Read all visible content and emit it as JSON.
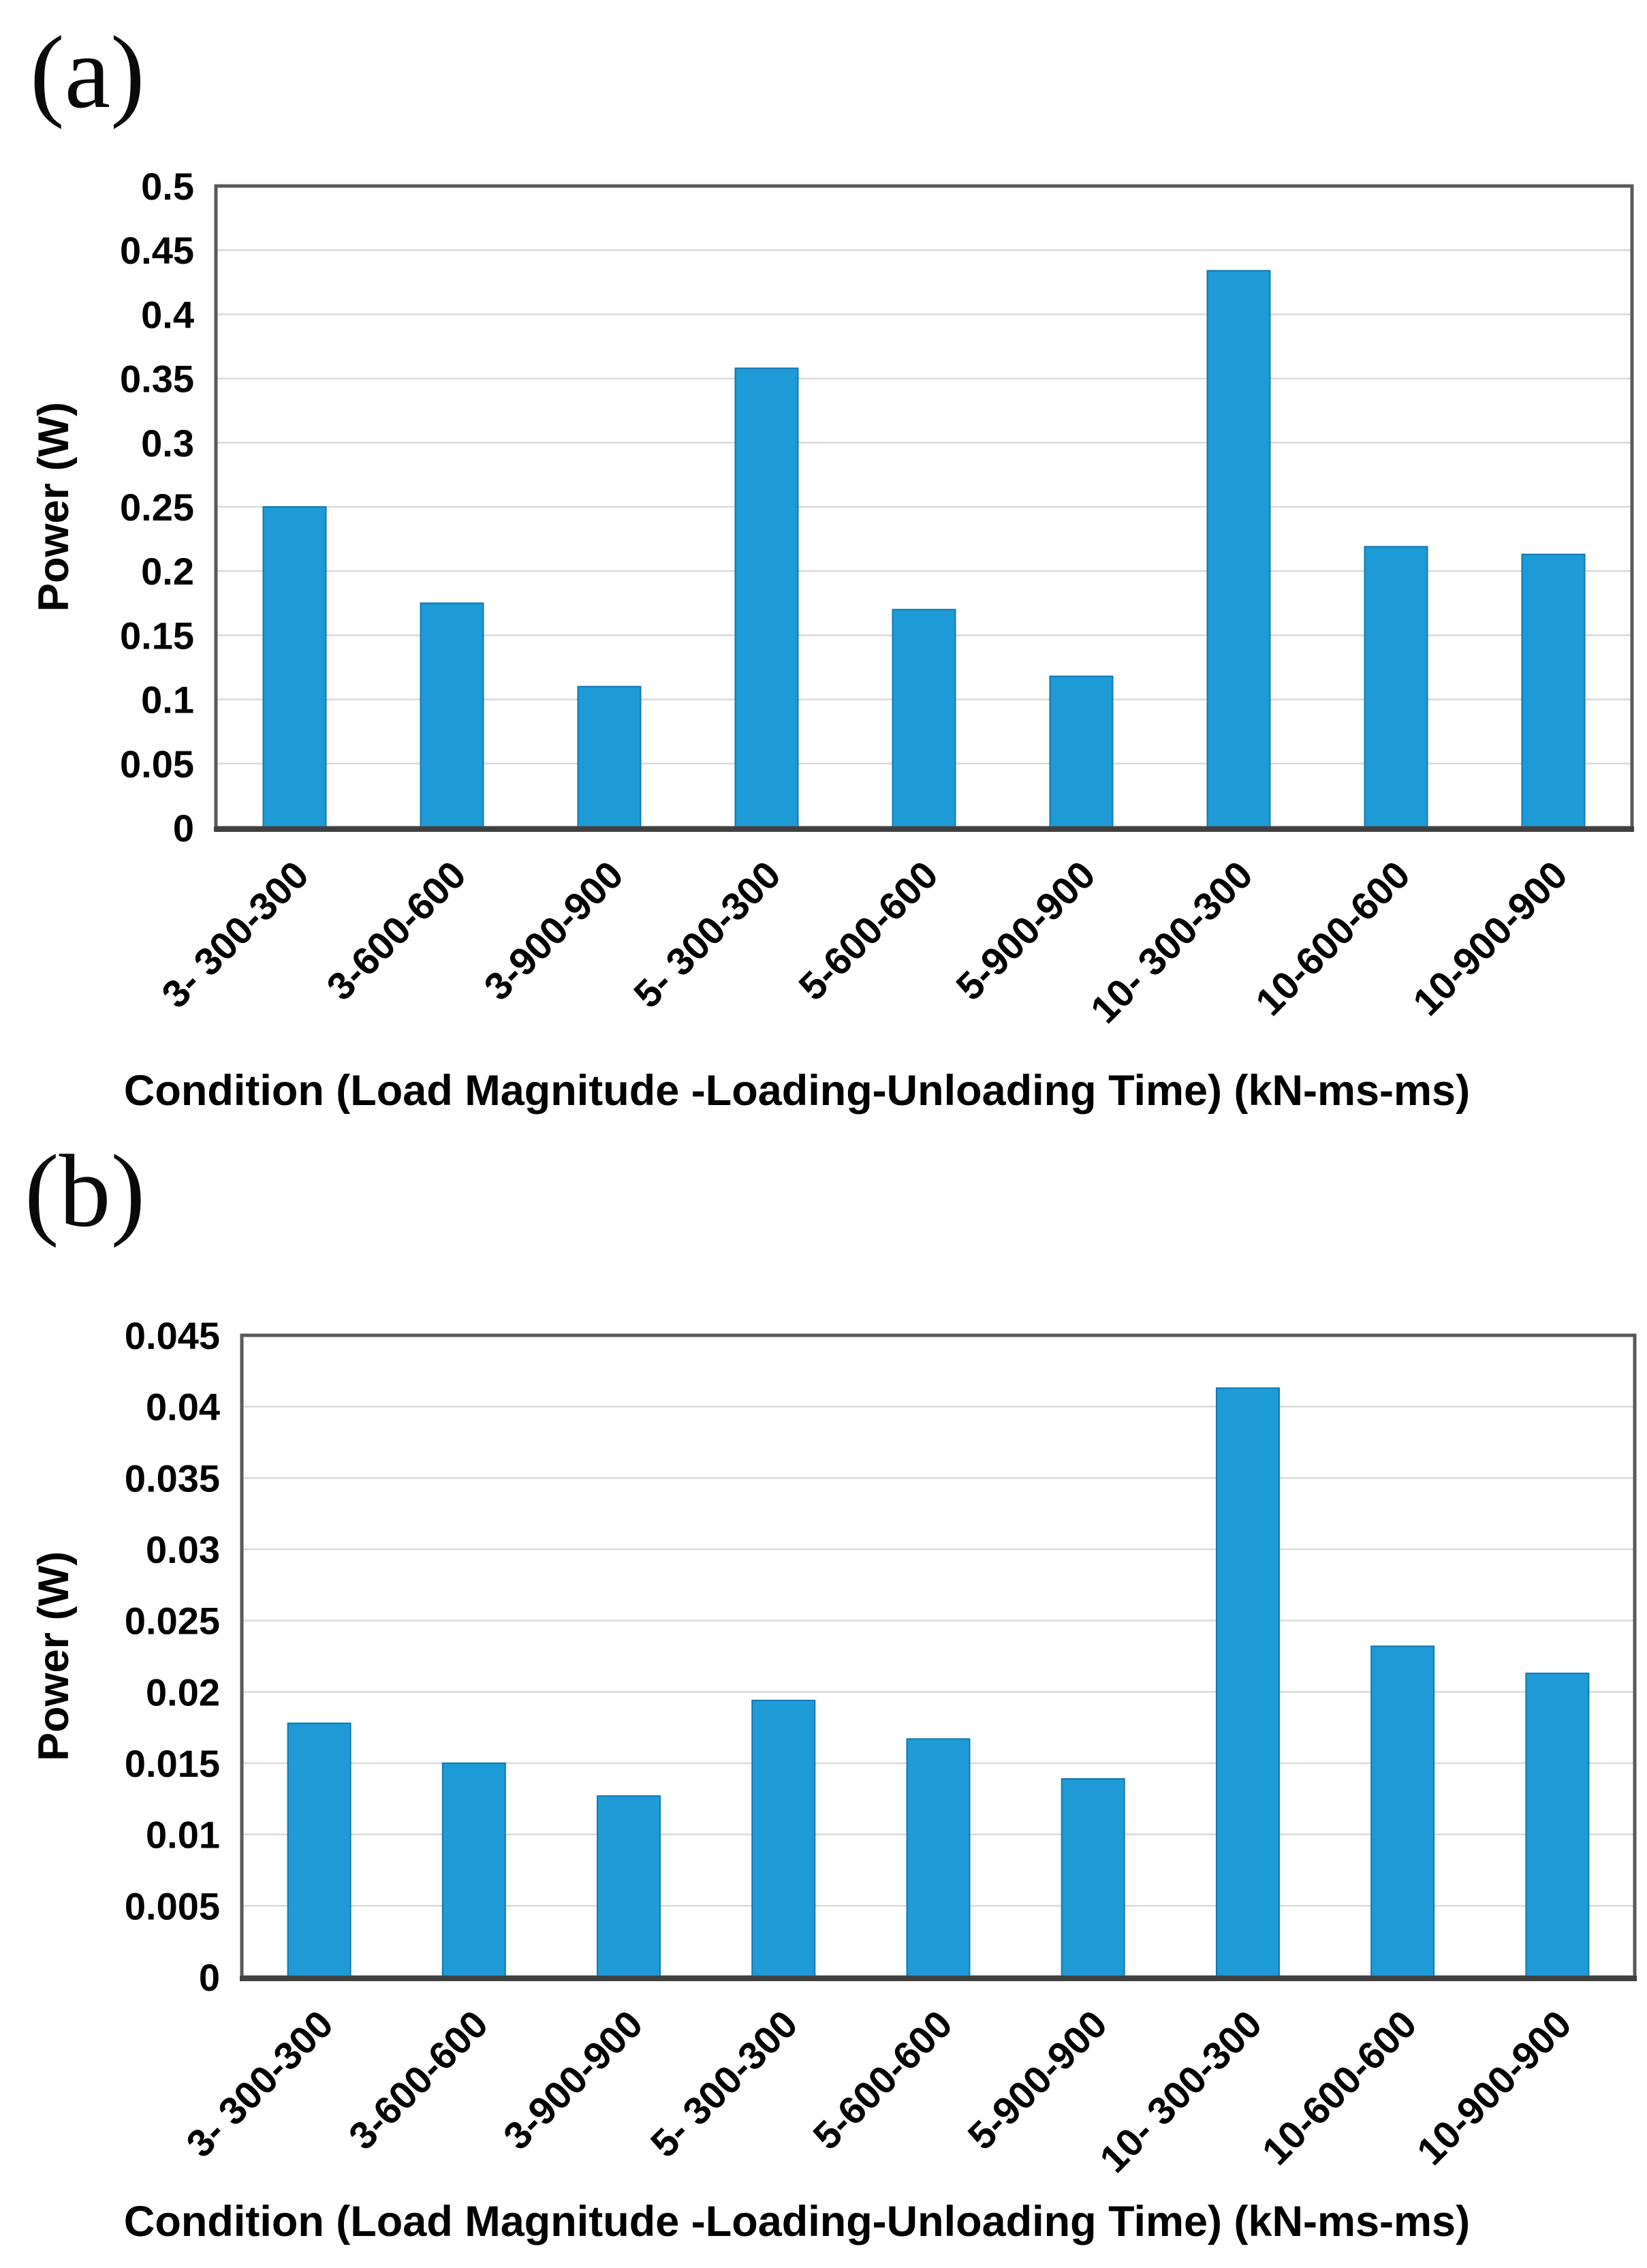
{
  "panels": [
    {
      "id": "a",
      "label": "(a)"
    },
    {
      "id": "b",
      "label": "(b)"
    }
  ],
  "colors": {
    "bar_fill": "#1E9BD7",
    "bar_edge": "#1177B0",
    "grid_line": "#D9D9D9",
    "frame": "#595959",
    "axis_line": "#404040",
    "text": "#000000",
    "background": "#FFFFFF"
  },
  "chart_data": [
    {
      "type": "bar",
      "panel": "a",
      "title": "",
      "categories": [
        "3- 300-300",
        "3-600-600",
        "3-900-900",
        "5- 300-300",
        "5-600-600",
        "5-900-900",
        "10- 300-300",
        "10-600-600",
        "10-900-900"
      ],
      "values": [
        0.25,
        0.175,
        0.11,
        0.358,
        0.17,
        0.118,
        0.434,
        0.219,
        0.213
      ],
      "xlabel": "Condition (Load Magnitude -Loading-Unloading Time) (kN-ms-ms)",
      "ylabel": "Power (W)",
      "ylim": [
        0,
        0.5
      ],
      "ytick_step": 0.05,
      "yticks": [
        "0.5",
        "0.45",
        "0.4",
        "0.35",
        "0.3",
        "0.25",
        "0.2",
        "0.15",
        "0.1",
        "0.05",
        "0"
      ],
      "grid": true,
      "legend_position": "none"
    },
    {
      "type": "bar",
      "panel": "b",
      "title": "",
      "categories": [
        "3- 300-300",
        "3-600-600",
        "3-900-900",
        "5- 300-300",
        "5-600-600",
        "5-900-900",
        "10- 300-300",
        "10-600-600",
        "10-900-900"
      ],
      "values": [
        0.0178,
        0.015,
        0.0127,
        0.0194,
        0.0167,
        0.0139,
        0.0413,
        0.0232,
        0.0213
      ],
      "xlabel": "Condition (Load Magnitude -Loading-Unloading Time) (kN-ms-ms)",
      "ylabel": "Power (W)",
      "ylim": [
        0,
        0.045
      ],
      "ytick_step": 0.005,
      "yticks": [
        "0.045",
        "0.04",
        "0.035",
        "0.03",
        "0.025",
        "0.02",
        "0.015",
        "0.01",
        "0.005",
        "0"
      ],
      "grid": true,
      "legend_position": "none"
    }
  ]
}
